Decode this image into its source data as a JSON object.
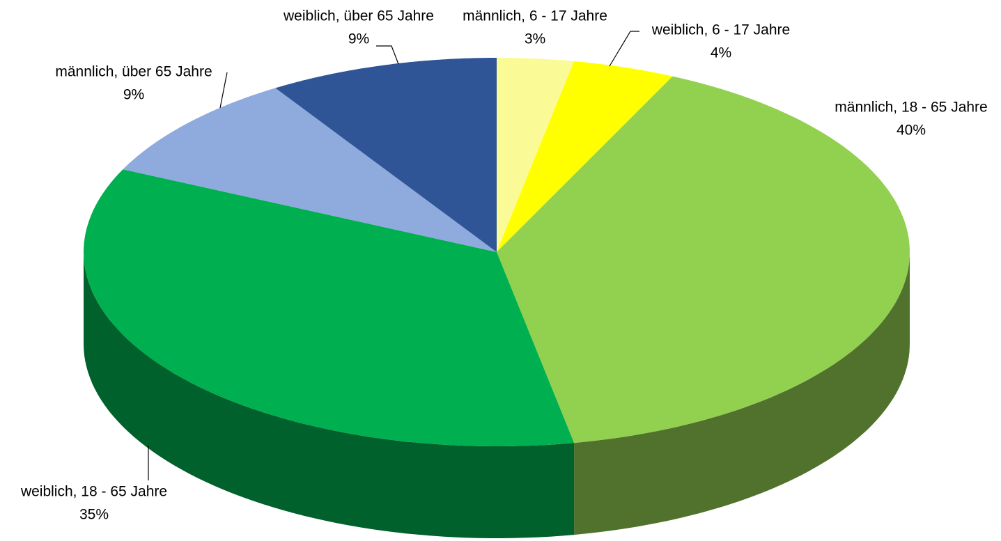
{
  "chart_data": {
    "type": "pie3d",
    "categories": [
      "männlich, 6 - 17 Jahre",
      "weiblich, 6 - 17 Jahre",
      "männlich, 18 - 65 Jahre",
      "weiblich, 18 - 65 Jahre",
      "männlich, über 65 Jahre",
      "weiblich, über 65 Jahre"
    ],
    "values": [
      3,
      4,
      40,
      35,
      9,
      9
    ],
    "value_labels": [
      "3%",
      "4%",
      "40%",
      "35%",
      "9%",
      "9%"
    ],
    "colors": [
      "#fafa96",
      "#ffff00",
      "#92d050",
      "#00b050",
      "#8faadc",
      "#2f5597"
    ]
  }
}
